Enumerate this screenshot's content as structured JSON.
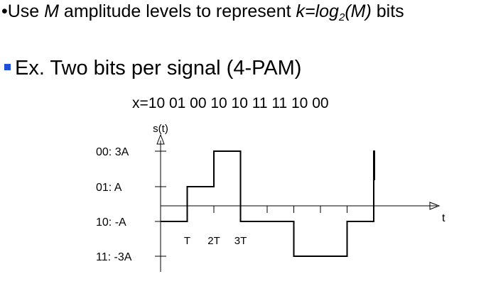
{
  "slide": {
    "bullet1": {
      "prefix": "•Use ",
      "m": "M",
      "mid": " amplitude levels to represent ",
      "k_expr": "k=log",
      "sub": "2",
      "paren": "(M)",
      "suffix": " bits"
    },
    "bullet2": "Ex. Two bits per signal (4-PAM)",
    "bit_sequence": "x=10 01 00 10 10 11 11 10 00"
  },
  "chart_data": {
    "type": "line",
    "step": true,
    "xlabel": "t",
    "ylabel": "s(t)",
    "x_ticks": [
      "T",
      "2T",
      "3T"
    ],
    "y_levels": [
      {
        "label": "00:  3A",
        "value": 3
      },
      {
        "label": "01:   A",
        "value": 1
      },
      {
        "label": "10:  -A",
        "value": -1
      },
      {
        "label": "11:  -3A",
        "value": -3
      }
    ],
    "symbols": [
      "10",
      "01",
      "00",
      "10",
      "10",
      "11",
      "11",
      "10",
      "00"
    ],
    "values": [
      -1,
      1,
      3,
      -1,
      -1,
      -3,
      -3,
      -1,
      3
    ],
    "x_range": [
      0,
      9
    ],
    "y_range": [
      -3,
      3
    ]
  }
}
